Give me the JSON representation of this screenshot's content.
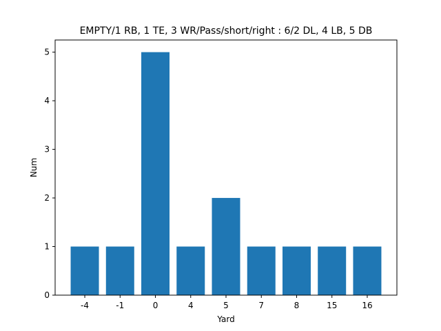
{
  "chart_data": {
    "type": "bar",
    "title": "EMPTY/1 RB, 1 TE, 3 WR/Pass/short/right : 6/2 DL, 4 LB, 5 DB",
    "xlabel": "Yard",
    "ylabel": "Num",
    "categories": [
      "-4",
      "-1",
      "0",
      "4",
      "5",
      "7",
      "8",
      "15",
      "16"
    ],
    "values": [
      1,
      1,
      5,
      1,
      2,
      1,
      1,
      1,
      1
    ],
    "ylim": [
      0,
      5.25
    ],
    "yticks": [
      "0",
      "1",
      "2",
      "3",
      "4",
      "5"
    ],
    "bar_color": "#1f77b4",
    "grid": false,
    "legend": "none"
  }
}
